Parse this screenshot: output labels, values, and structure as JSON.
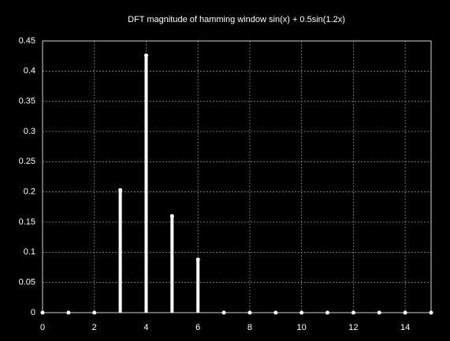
{
  "chart_data": {
    "type": "stem",
    "title": "DFT magnitude of hamming window sin(x) + 0.5sin(1.2x)",
    "x": [
      0,
      1,
      2,
      3,
      4,
      5,
      6,
      7,
      8,
      9,
      10,
      11,
      12,
      13,
      14,
      15
    ],
    "values": [
      0,
      0,
      0,
      0.203,
      0.426,
      0.16,
      0.088,
      0,
      0,
      0,
      0,
      0,
      0,
      0,
      0,
      0
    ],
    "color": "#ffffff",
    "xlim": [
      0,
      15
    ],
    "xticks": [
      0,
      2,
      4,
      6,
      8,
      10,
      12,
      14
    ],
    "ylim": [
      0,
      0.45
    ],
    "yticks": [
      0,
      0.05,
      0.1,
      0.15,
      0.2,
      0.25,
      0.3,
      0.35,
      0.4,
      0.45
    ],
    "grid": true
  }
}
